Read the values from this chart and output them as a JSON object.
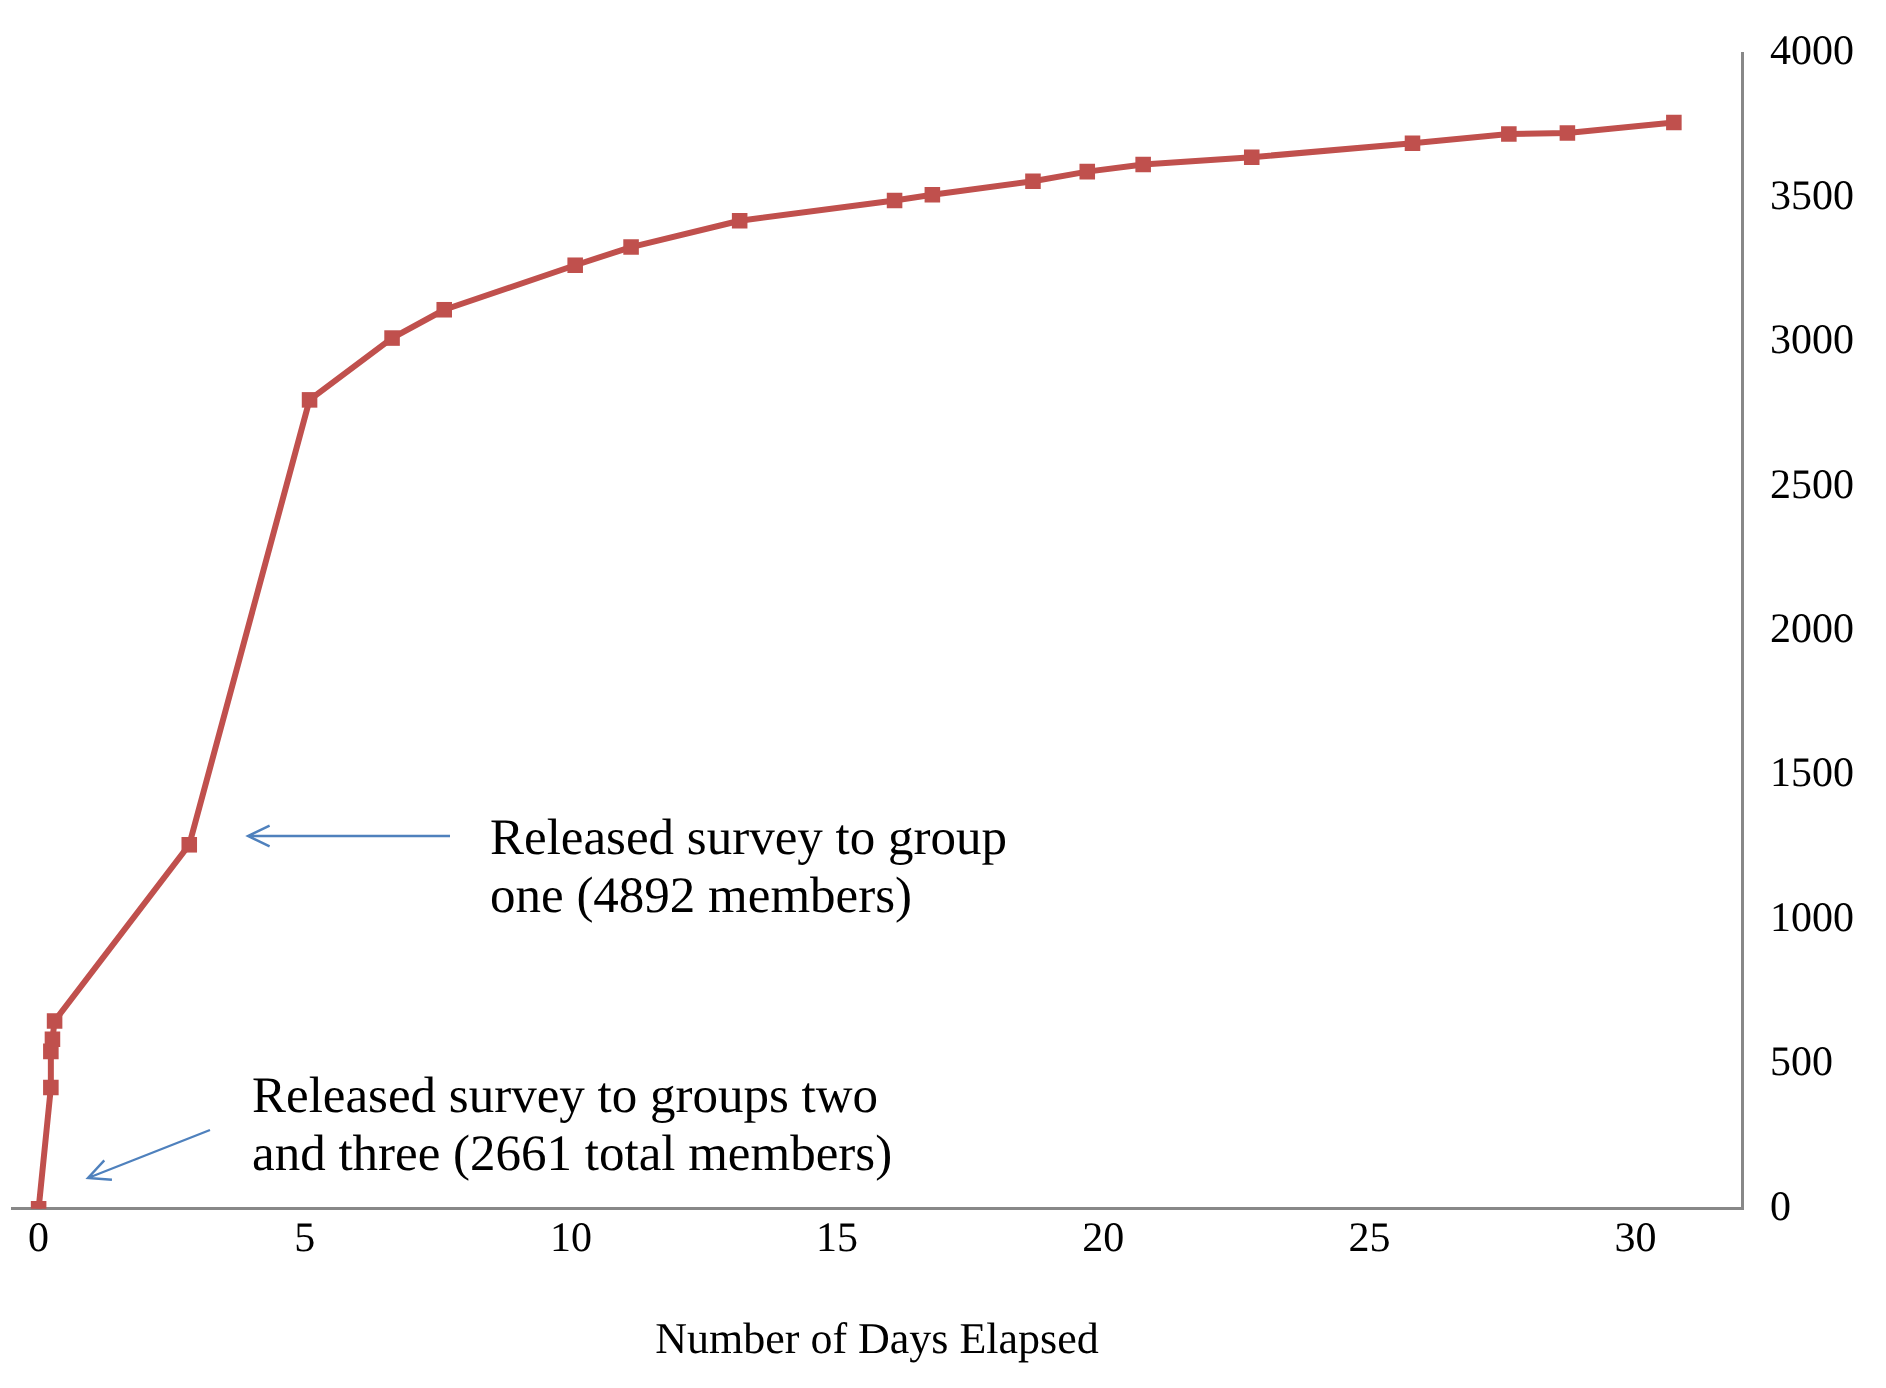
{
  "chart_data": {
    "type": "line",
    "xlabel": "Number of Days Elapsed",
    "x": [
      0,
      0.23,
      0.23,
      0.26,
      0.3,
      2.83,
      5.09,
      6.64,
      7.62,
      10.08,
      11.13,
      13.17,
      16.08,
      16.79,
      18.68,
      19.7,
      20.75,
      22.79,
      25.81,
      27.62,
      28.72,
      30.72
    ],
    "series": [
      {
        "color": "#c0504d",
        "values": [
          0,
          420,
          545,
          587,
          650,
          1260,
          2800,
          3014,
          3112,
          3266,
          3329,
          3420,
          3490,
          3510,
          3557,
          3590,
          3615,
          3640,
          3688,
          3720,
          3724,
          3760
        ]
      }
    ],
    "xlim": [
      -0.5,
      32
    ],
    "xticks": [
      0,
      5,
      10,
      15,
      20,
      25,
      30
    ],
    "ylim": [
      0,
      4000
    ],
    "yticks": [
      0,
      500,
      1000,
      1500,
      2000,
      2500,
      3000,
      3500,
      4000
    ],
    "grid": false,
    "legend": false,
    "marker": "square",
    "line_style": "solid",
    "annotations": [
      "Released survey to group one (4892 members)",
      "Released survey to groups two and three (2661 total members)"
    ]
  }
}
